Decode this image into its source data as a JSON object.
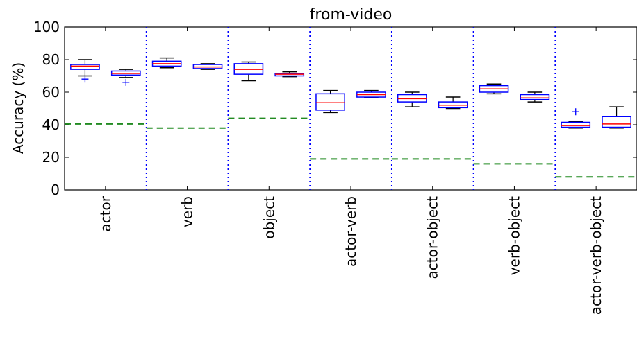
{
  "chart_data": {
    "type": "box",
    "title": "from-video",
    "xlabel": "",
    "ylabel": "Accuracy (%)",
    "ylim": [
      0,
      100
    ],
    "yticks": [
      0,
      20,
      40,
      60,
      80,
      100
    ],
    "grid": false,
    "categories": [
      "actor",
      "verb",
      "object",
      "actor-verb",
      "actor-object",
      "verb-object",
      "actor-verb-object"
    ],
    "groups": [
      {
        "category": "actor",
        "baseline": 40.5,
        "boxes": [
          {
            "whislo": 70,
            "q1": 74,
            "med": 76,
            "q3": 77,
            "whishi": 80,
            "fliers": [
              68
            ]
          },
          {
            "whislo": 69,
            "q1": 70.5,
            "med": 71.5,
            "q3": 73,
            "whishi": 74,
            "fliers": [
              66
            ]
          }
        ]
      },
      {
        "category": "verb",
        "baseline": 38,
        "boxes": [
          {
            "whislo": 75,
            "q1": 76,
            "med": 77.5,
            "q3": 79,
            "whishi": 81,
            "fliers": []
          },
          {
            "whislo": 74,
            "q1": 74.5,
            "med": 75.5,
            "q3": 77,
            "whishi": 77.5,
            "fliers": []
          }
        ]
      },
      {
        "category": "object",
        "baseline": 44,
        "boxes": [
          {
            "whislo": 67,
            "q1": 71,
            "med": 74,
            "q3": 77.5,
            "whishi": 78.5,
            "fliers": []
          },
          {
            "whislo": 69.5,
            "q1": 70,
            "med": 71,
            "q3": 71.5,
            "whishi": 72.5,
            "fliers": []
          }
        ]
      },
      {
        "category": "actor-verb",
        "baseline": 19,
        "boxes": [
          {
            "whislo": 47.5,
            "q1": 49,
            "med": 53.5,
            "q3": 59,
            "whishi": 61,
            "fliers": []
          },
          {
            "whislo": 56.5,
            "q1": 57,
            "med": 58.5,
            "q3": 60,
            "whishi": 61,
            "fliers": []
          }
        ]
      },
      {
        "category": "actor-object",
        "baseline": 19,
        "boxes": [
          {
            "whislo": 51,
            "q1": 54,
            "med": 56,
            "q3": 58.5,
            "whishi": 60,
            "fliers": []
          },
          {
            "whislo": 50,
            "q1": 50.5,
            "med": 52,
            "q3": 54,
            "whishi": 57,
            "fliers": []
          }
        ]
      },
      {
        "category": "verb-object",
        "baseline": 16,
        "boxes": [
          {
            "whislo": 59,
            "q1": 60,
            "med": 62,
            "q3": 64,
            "whishi": 65,
            "fliers": []
          },
          {
            "whislo": 54,
            "q1": 55.5,
            "med": 56.5,
            "q3": 58.5,
            "whishi": 60,
            "fliers": []
          }
        ]
      },
      {
        "category": "actor-verb-object",
        "baseline": 8,
        "boxes": [
          {
            "whislo": 38,
            "q1": 38.5,
            "med": 39.5,
            "q3": 41.5,
            "whishi": 42,
            "fliers": [
              48
            ]
          },
          {
            "whislo": 38,
            "q1": 38.5,
            "med": 40.5,
            "q3": 45,
            "whishi": 51,
            "fliers": []
          }
        ]
      }
    ],
    "colors": {
      "box": "#0000ff",
      "whisker": "#000000",
      "median": "#ff0000",
      "flier": "#0000ff",
      "baseline": "#228b22",
      "separator": "#0000ff"
    }
  }
}
